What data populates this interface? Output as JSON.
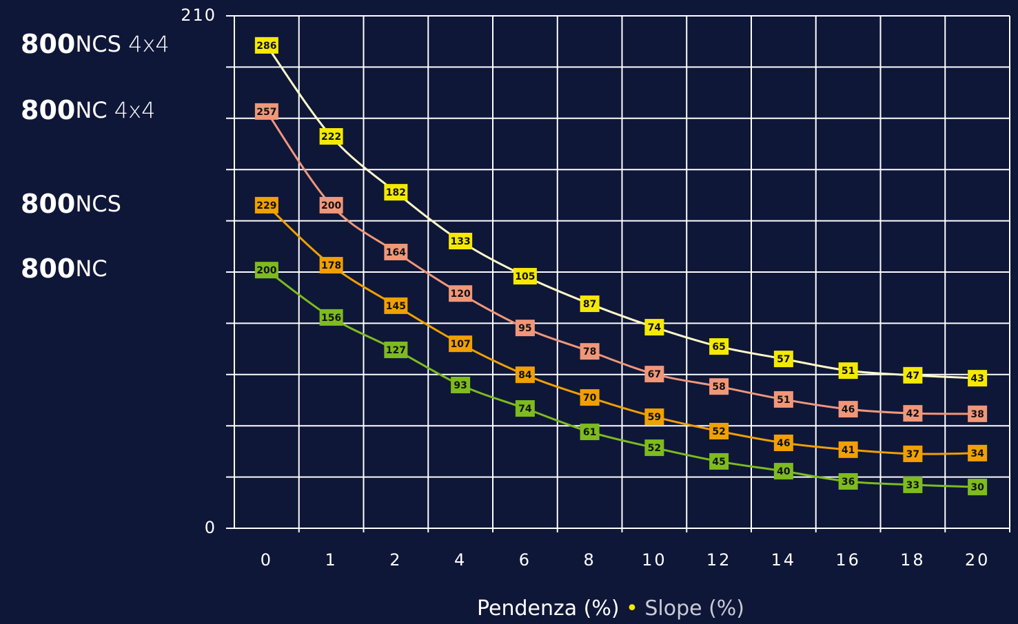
{
  "chart_data": {
    "type": "line",
    "x_label": "Pendenza (%) • Slope (%)",
    "categories": [
      "0",
      "1",
      "2",
      "4",
      "6",
      "8",
      "10",
      "12",
      "14",
      "16",
      "18",
      "20"
    ],
    "ylim": [
      0,
      210
    ],
    "yticks": [
      0,
      {
        "value": 21,
        "label": ""
      },
      {
        "value": 42,
        "label": ""
      },
      {
        "value": 63,
        "label": ""
      },
      {
        "value": 84,
        "label": ""
      },
      {
        "value": 105,
        "label": ""
      },
      {
        "value": 126,
        "label": ""
      },
      {
        "value": 147,
        "label": ""
      },
      {
        "value": 168,
        "label": ""
      },
      {
        "value": 189,
        "label": ""
      },
      210
    ],
    "grid": true,
    "series": [
      {
        "name": "800NCS 4x4",
        "color": "#f5e900",
        "line_color": "#fffbc8",
        "values": [
          197.9,
          160.6,
          137.7,
          117.7,
          103.3,
          92.0,
          82.4,
          74.5,
          69.4,
          64.6,
          62.7,
          61.5
        ],
        "labels": [
          "286",
          "222",
          "182",
          "133",
          "105",
          "87",
          "74",
          "65",
          "57",
          "51",
          "47",
          "43"
        ]
      },
      {
        "name": "800NC 4x4",
        "color": "#f0977a",
        "line_color": "#f0977a",
        "values": [
          170.8,
          132.4,
          113.2,
          96.2,
          82.1,
          72.5,
          63.2,
          58.1,
          52.8,
          48.8,
          47.1,
          46.9
        ],
        "labels": [
          "257",
          "200",
          "164",
          "120",
          "95",
          "78",
          "67",
          "58",
          "51",
          "46",
          "42",
          "38"
        ]
      },
      {
        "name": "800NCS",
        "color": "#f0a000",
        "line_color": "#f0a000",
        "values": [
          132.4,
          107.8,
          91.2,
          75.6,
          62.9,
          53.6,
          45.7,
          39.8,
          35.0,
          32.2,
          30.5,
          30.8
        ],
        "labels": [
          "229",
          "178",
          "145",
          "107",
          "84",
          "70",
          "59",
          "52",
          "46",
          "41",
          "37",
          "34"
        ]
      },
      {
        "name": "800NC",
        "color": "#7dbb1f",
        "line_color": "#7dbb1f",
        "values": [
          105.8,
          86.4,
          73.1,
          58.7,
          49.1,
          39.5,
          33.0,
          27.4,
          23.4,
          19.2,
          17.8,
          16.9
        ],
        "labels": [
          "200",
          "156",
          "127",
          "93",
          "74",
          "61",
          "52",
          "45",
          "40",
          "36",
          "33",
          "30"
        ]
      }
    ]
  }
}
